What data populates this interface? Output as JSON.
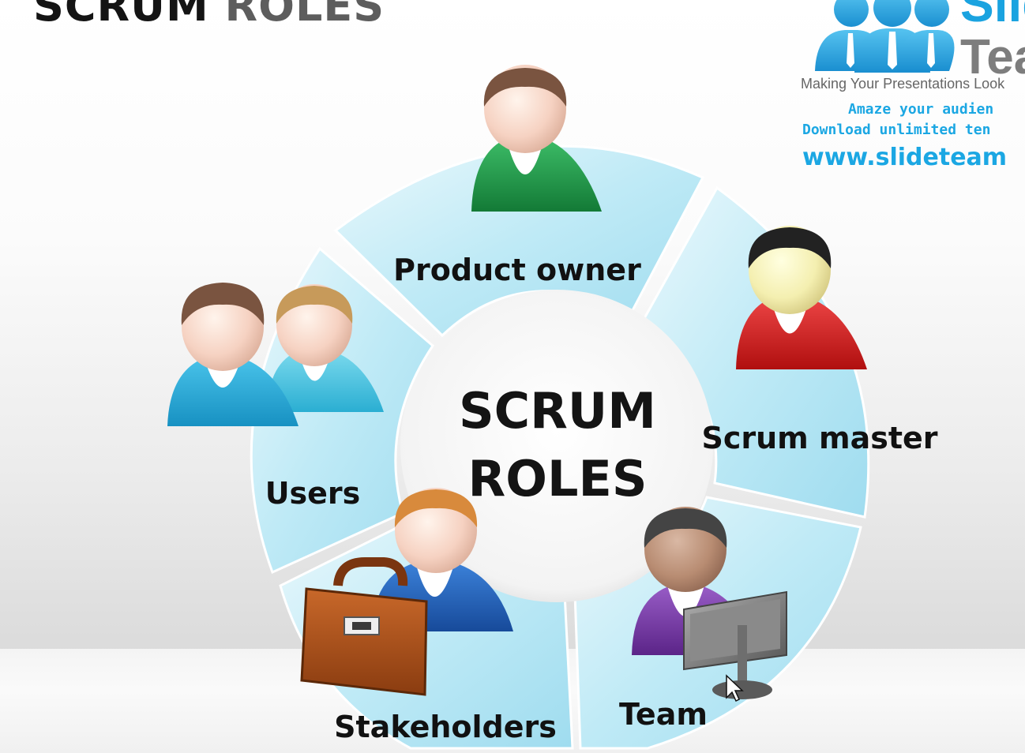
{
  "slide": {
    "title_part1": "SCRUM",
    "title_part2": "ROLES"
  },
  "logo": {
    "brand_part1": "Slide",
    "brand_part2": "Team",
    "tagline": "Making Your Presentations Look",
    "line1": "Amaze your audien",
    "line2": "Download unlimited ten",
    "url": "www.slideteam"
  },
  "diagram": {
    "center_line1": "SCRUM",
    "center_line2": "ROLES",
    "segments": [
      {
        "label": "Product owner"
      },
      {
        "label": "Scrum master"
      },
      {
        "label": "Team"
      },
      {
        "label": "Stakeholders"
      },
      {
        "label": "Users"
      }
    ]
  },
  "colors": {
    "ring_light": "#e6f7fc",
    "ring_mid": "#bfeaf6",
    "ring_dark": "#8fd6ec",
    "product_owner_shirt": "#1f9a4a",
    "scrum_master_shirt": "#d61f1f",
    "team_shirt": "#7a3aa6",
    "stakeholder_shirt": "#1f5fb8",
    "user_shirt": "#27a9d6",
    "briefcase": "#a8531b"
  },
  "icons": [
    "person-green-icon",
    "person-red-icon",
    "person-purple-icon",
    "monitor-icon",
    "person-blue-icon",
    "briefcase-icon",
    "two-people-icon",
    "mouse-cursor-icon",
    "slideteam-logo-people-icon"
  ]
}
